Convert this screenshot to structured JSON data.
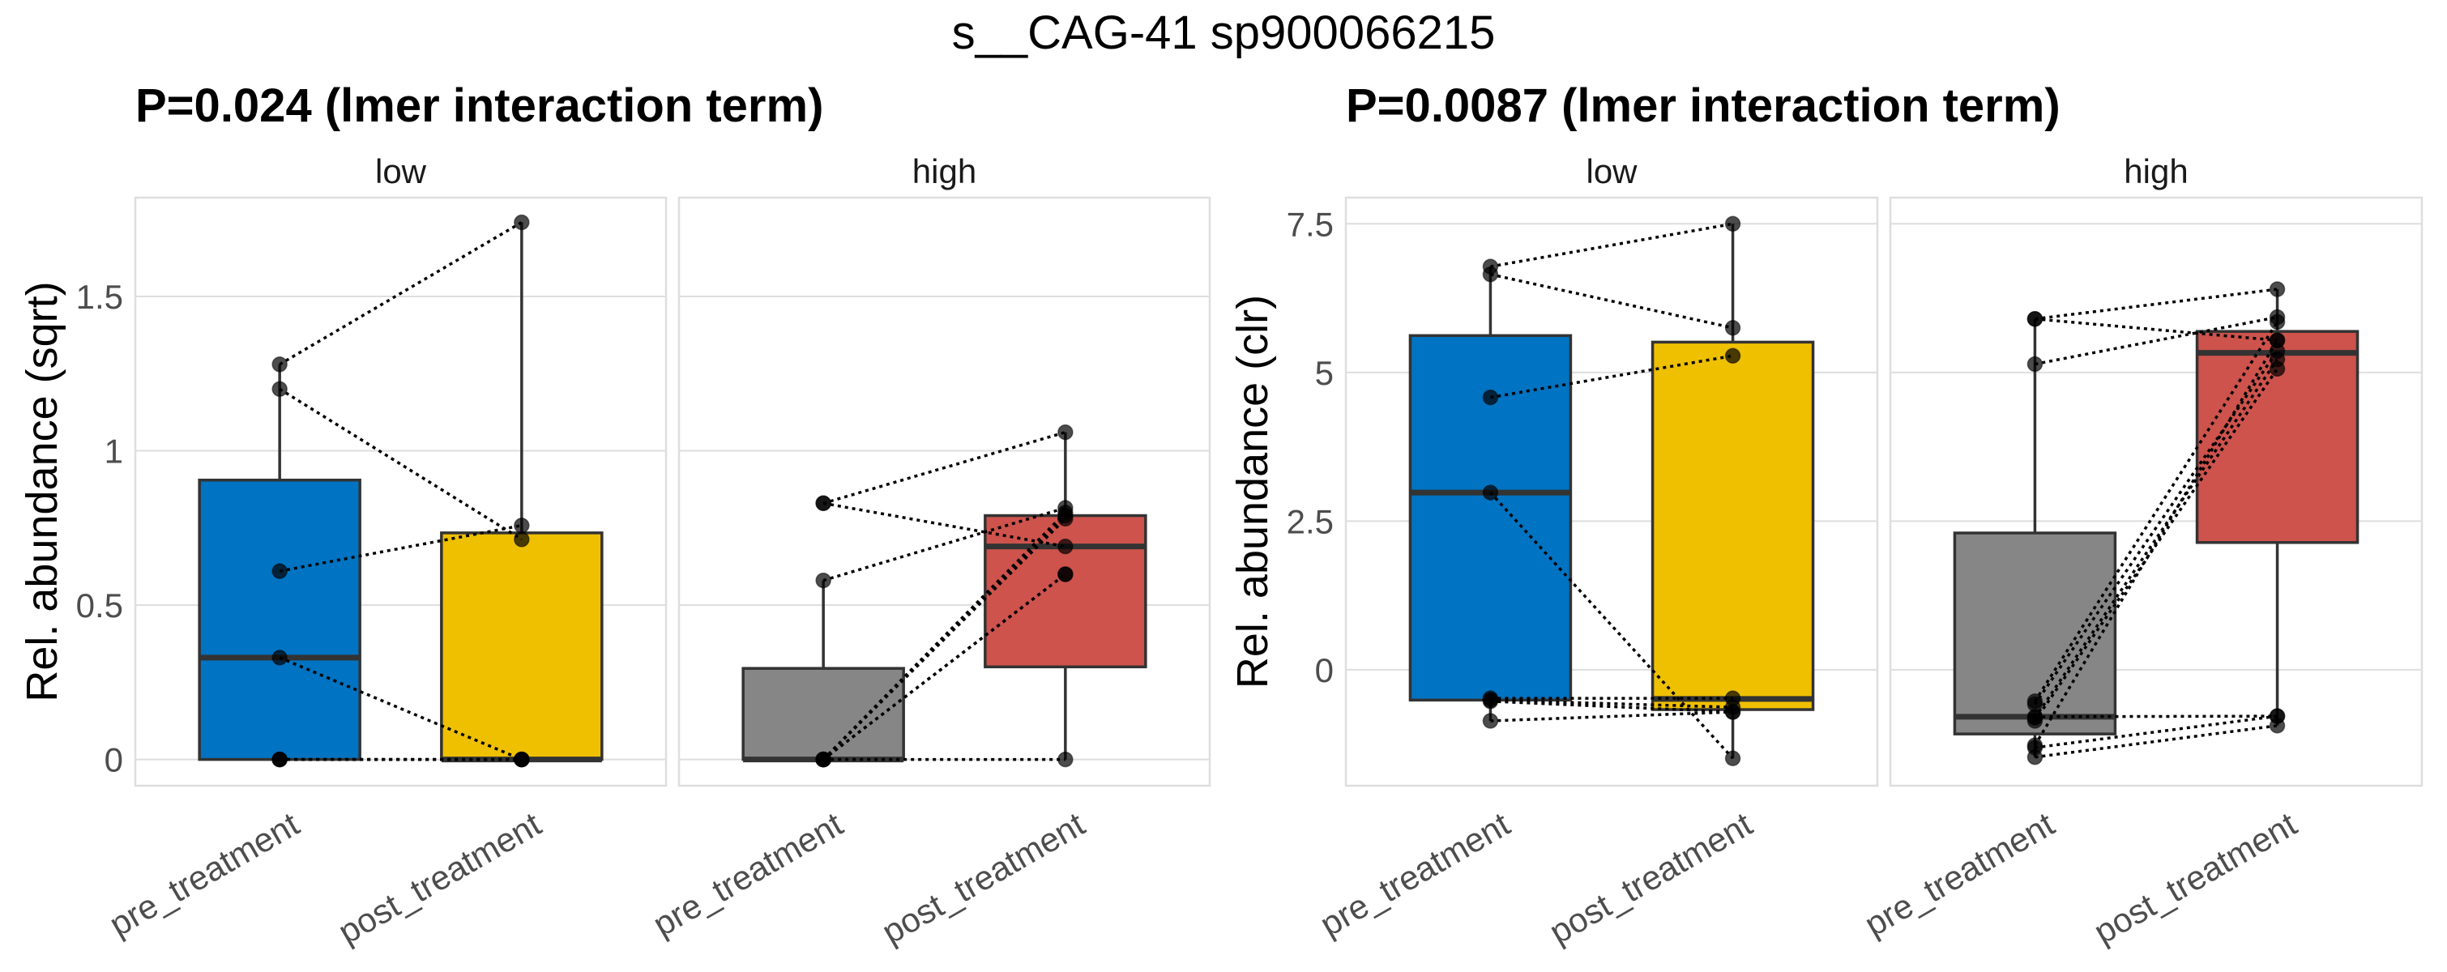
{
  "figure": {
    "title": "s__CAG-41 sp900066215"
  },
  "chart_data": [
    {
      "type": "box",
      "title": "P=0.024 (lmer interaction term)",
      "ylabel": "Rel. abundance (sqrt)",
      "xlabel": "",
      "ylim": [
        -0.085,
        1.82
      ],
      "yticks": [
        0,
        0.5,
        1,
        1.5
      ],
      "ytick_labels": [
        "0",
        "0.5",
        "1",
        "1.5"
      ],
      "grid": true,
      "categories": [
        "pre_treatment",
        "post_treatment"
      ],
      "facets": [
        {
          "label": "low",
          "boxes": [
            {
              "category": "pre_treatment",
              "fill": "#0073C2",
              "q1": 0,
              "median": 0.33,
              "q3": 0.905,
              "whisker_low": 0,
              "whisker_high": 1.28
            },
            {
              "category": "post_treatment",
              "fill": "#EFC000",
              "q1": 0,
              "median": 0,
              "q3": 0.734,
              "whisker_low": 0,
              "whisker_high": 1.74
            }
          ],
          "pairs": [
            [
              1.28,
              1.74
            ],
            [
              1.2,
              0.713
            ],
            [
              0.61,
              0.758
            ],
            [
              0.33,
              0
            ],
            [
              0,
              0
            ],
            [
              0,
              0
            ],
            [
              0,
              0
            ]
          ]
        },
        {
          "label": "high",
          "boxes": [
            {
              "category": "pre_treatment",
              "fill": "#868686",
              "q1": 0,
              "median": 0,
              "q3": 0.295,
              "whisker_low": 0,
              "whisker_high": 0.58
            },
            {
              "category": "post_treatment",
              "fill": "#CD534C",
              "q1": 0.3,
              "median": 0.69,
              "q3": 0.79,
              "whisker_low": 0,
              "whisker_high": 1.06
            }
          ],
          "pairs": [
            [
              0.83,
              1.06
            ],
            [
              0.83,
              0.69
            ],
            [
              0.58,
              0.815
            ],
            [
              0,
              0.8
            ],
            [
              0,
              0.79
            ],
            [
              0,
              0.78
            ],
            [
              0,
              0.6
            ],
            [
              0,
              0.6
            ],
            [
              0,
              0
            ]
          ]
        }
      ]
    },
    {
      "type": "box",
      "title": "P=0.0087 (lmer interaction term)",
      "ylabel": "Rel. abundance (clr)",
      "xlabel": "",
      "ylim": [
        -1.95,
        7.94
      ],
      "yticks": [
        0,
        2.5,
        5,
        7.5
      ],
      "ytick_labels": [
        "0",
        "2.5",
        "5",
        "7.5"
      ],
      "grid": true,
      "categories": [
        "pre_treatment",
        "post_treatment"
      ],
      "facets": [
        {
          "label": "low",
          "boxes": [
            {
              "category": "pre_treatment",
              "fill": "#0073C2",
              "q1": -0.51,
              "median": 2.98,
              "q3": 5.62,
              "whisker_low": -0.86,
              "whisker_high": 6.78
            },
            {
              "category": "post_treatment",
              "fill": "#EFC000",
              "q1": -0.67,
              "median": -0.49,
              "q3": 5.51,
              "whisker_low": -1.49,
              "whisker_high": 7.5
            }
          ],
          "pairs": [
            [
              6.78,
              7.5
            ],
            [
              6.65,
              5.75
            ],
            [
              4.58,
              5.28
            ],
            [
              2.98,
              -1.49
            ],
            [
              -0.48,
              -0.48
            ],
            [
              -0.51,
              -0.63
            ],
            [
              -0.53,
              -0.71
            ],
            [
              -0.86,
              -0.71
            ]
          ]
        },
        {
          "label": "high",
          "boxes": [
            {
              "category": "pre_treatment",
              "fill": "#868686",
              "q1": -1.08,
              "median": -0.79,
              "q3": 2.3,
              "whisker_low": -1.47,
              "whisker_high": 5.9
            },
            {
              "category": "post_treatment",
              "fill": "#CD534C",
              "q1": 2.14,
              "median": 5.33,
              "q3": 5.69,
              "whisker_low": -0.94,
              "whisker_high": 6.4
            }
          ],
          "pairs": [
            [
              5.9,
              6.4
            ],
            [
              5.9,
              5.54
            ],
            [
              5.14,
              5.93
            ],
            [
              -0.53,
              5.85
            ],
            [
              -0.58,
              5.36
            ],
            [
              -0.81,
              5.22
            ],
            [
              -0.86,
              5.06
            ],
            [
              -0.79,
              -0.78
            ],
            [
              -1.27,
              5.54
            ],
            [
              -1.31,
              -0.78
            ],
            [
              -1.47,
              -0.94
            ]
          ]
        }
      ]
    }
  ]
}
